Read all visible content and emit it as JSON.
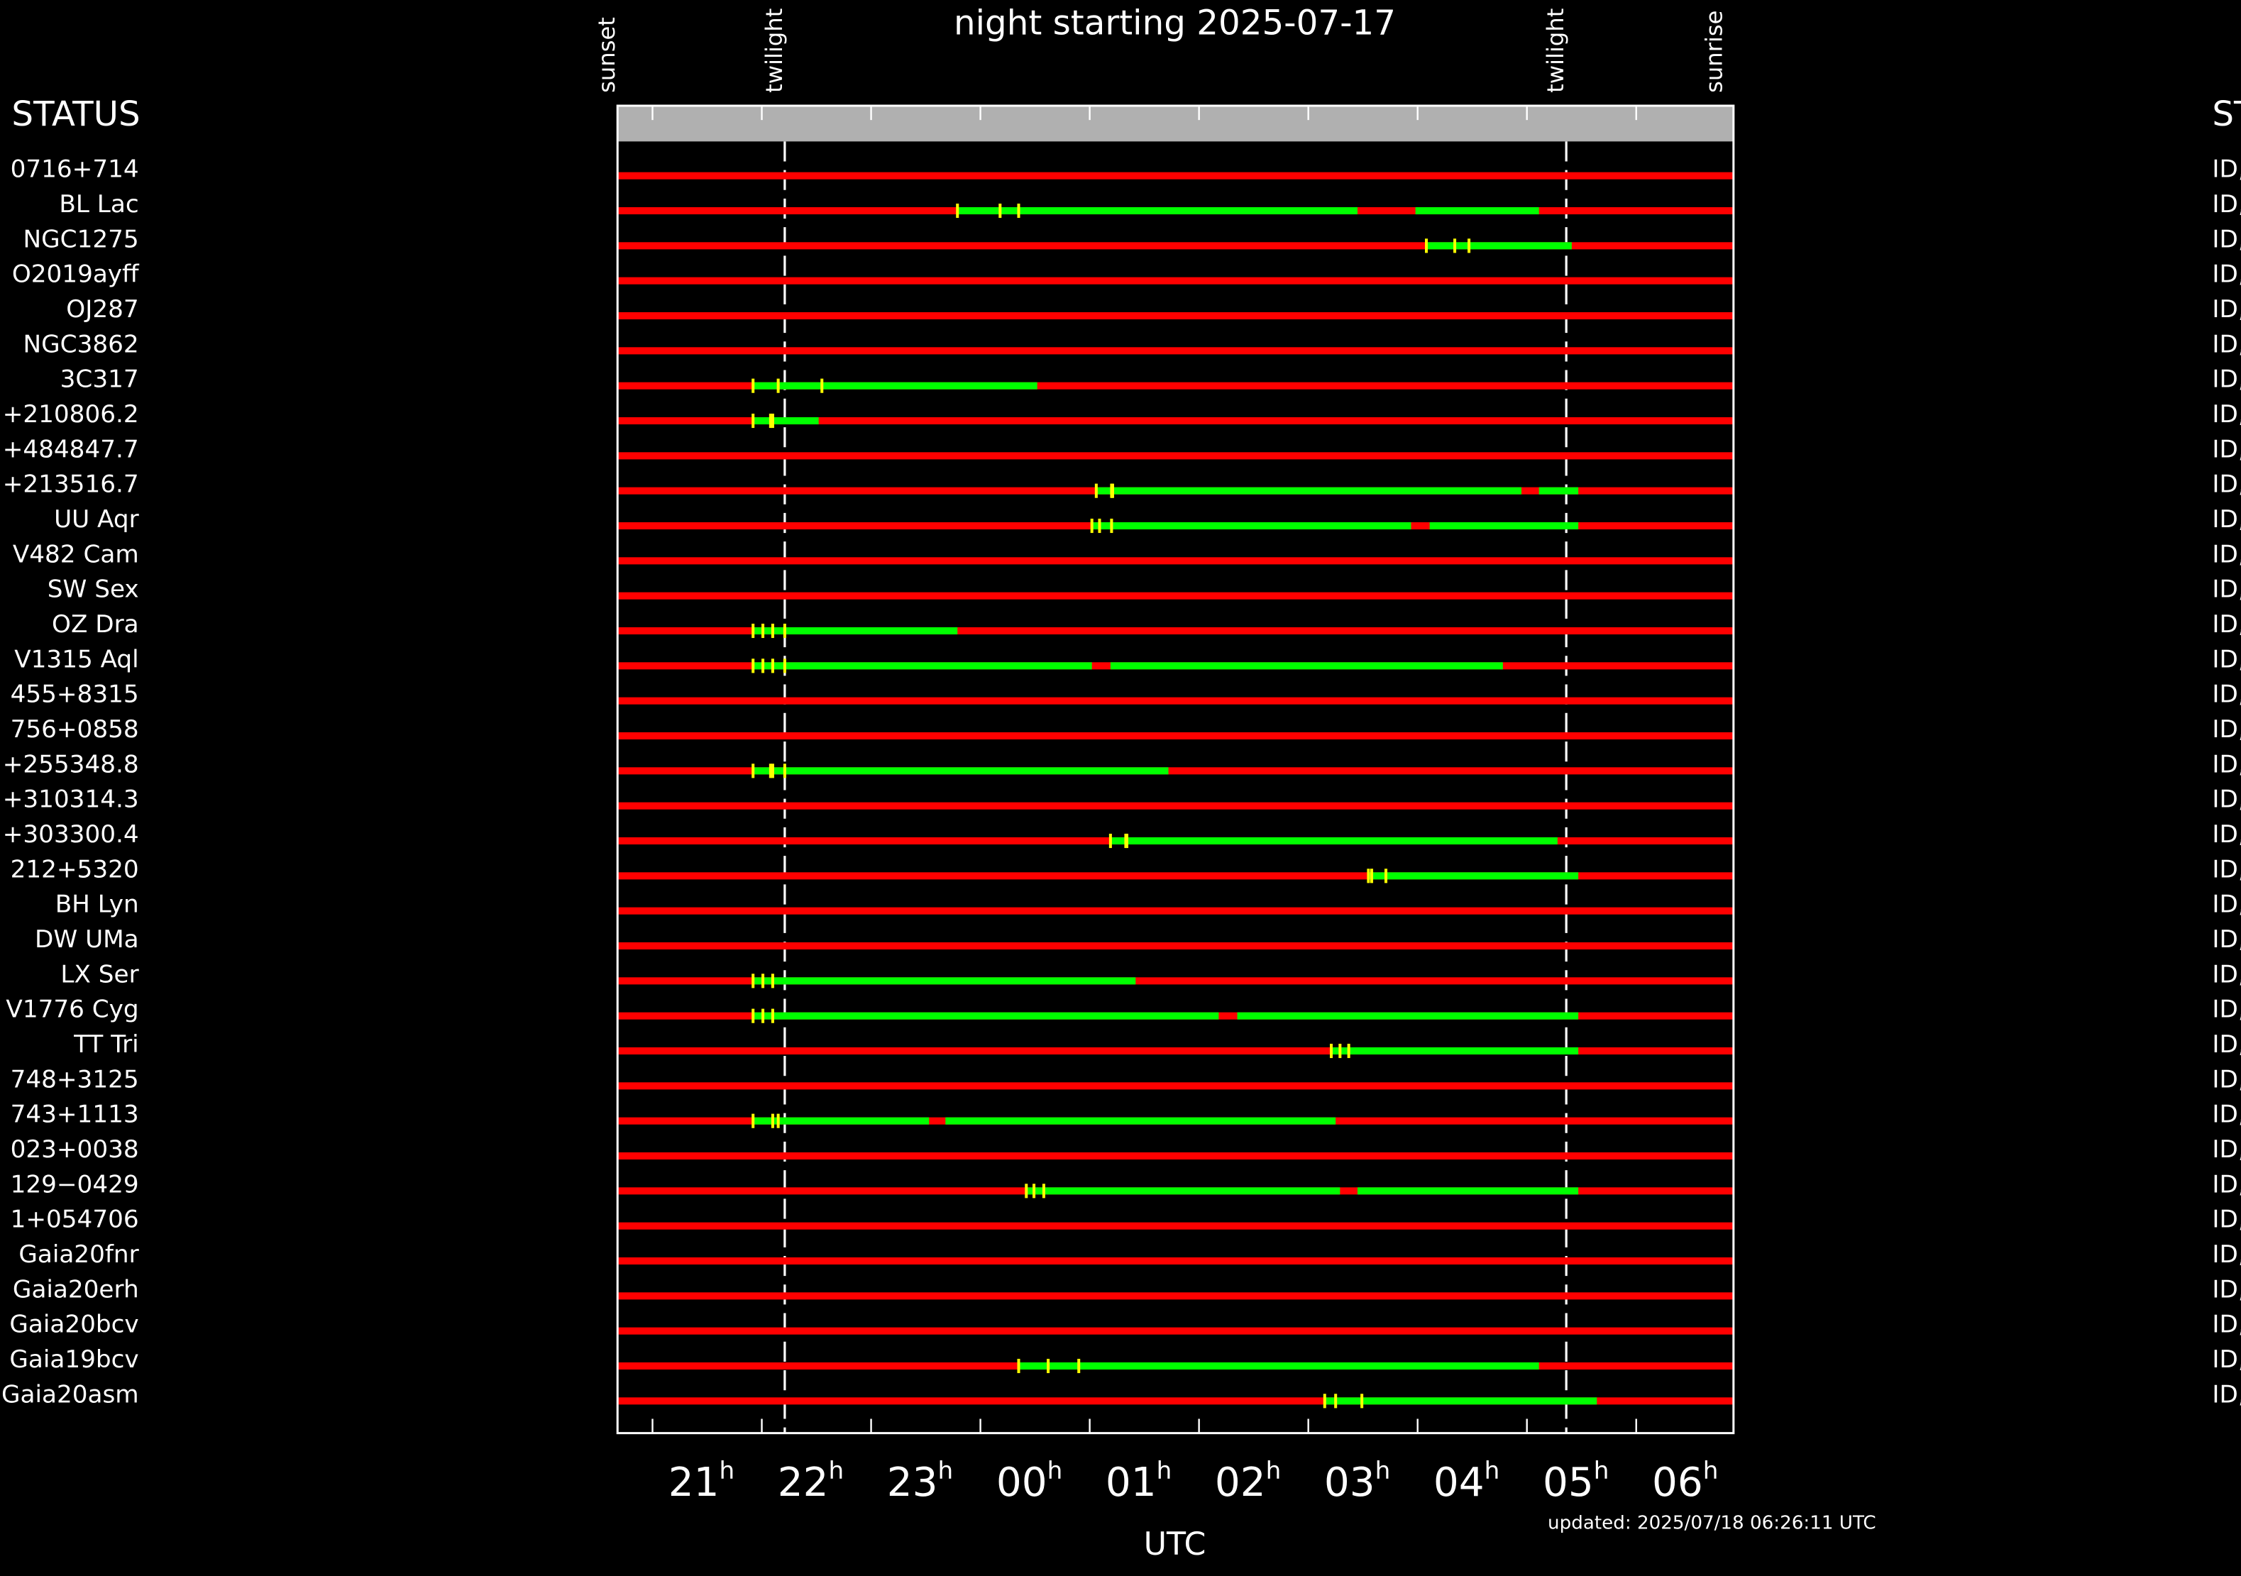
{
  "chart_data": {
    "type": "timeline",
    "title": "night starting 2025-07-17",
    "xlabel": "UTC",
    "left_header": "STATUS",
    "right_header": "ST",
    "updated": "updated: 2025/07/18 06:26:11 UTC",
    "bar_color": "#ff0000",
    "window_color": "#00ff00",
    "mark_color": "#ffff00",
    "xlim": [
      20.18,
      30.39
    ],
    "xticks": [
      {
        "value": 21,
        "label": "21h"
      },
      {
        "value": 22,
        "label": "22h"
      },
      {
        "value": 23,
        "label": "23h"
      },
      {
        "value": 24,
        "label": "00h"
      },
      {
        "value": 25,
        "label": "01h"
      },
      {
        "value": 26,
        "label": "02h"
      },
      {
        "value": 27,
        "label": "03h"
      },
      {
        "value": 28,
        "label": "04h"
      },
      {
        "value": 29,
        "label": "05h"
      },
      {
        "value": 30,
        "label": "06h"
      }
    ],
    "xminor": [
      20.5,
      21.5,
      22.5,
      23.5,
      24.5,
      25.5,
      26.5,
      27.5,
      28.5,
      29.5
    ],
    "events": [
      {
        "label": "sunset",
        "x": 20.18,
        "dashed": false
      },
      {
        "label": "twilight",
        "x": 21.71,
        "dashed": true
      },
      {
        "label": "twilight",
        "x": 28.86,
        "dashed": true
      },
      {
        "label": "sunrise",
        "x": 30.31,
        "dashed": false
      }
    ],
    "rows": [
      {
        "name": "0716+714",
        "status": "ID,",
        "windows": [],
        "marks": []
      },
      {
        "name": "BL Lac",
        "status": "ID,",
        "windows": [
          [
            23.29,
            26.95
          ],
          [
            27.48,
            28.61
          ]
        ],
        "marks": [
          23.29,
          23.68,
          23.85
        ]
      },
      {
        "name": "NGC1275",
        "status": "ID,",
        "windows": [
          [
            27.58,
            28.91
          ]
        ],
        "marks": [
          27.58,
          27.84,
          27.97
        ]
      },
      {
        "name": "O2019ayff",
        "status": "ID,",
        "windows": [],
        "marks": []
      },
      {
        "name": "OJ287",
        "status": "ID,",
        "windows": [],
        "marks": []
      },
      {
        "name": "NGC3862",
        "status": "ID,",
        "windows": [],
        "marks": []
      },
      {
        "name": "3C317",
        "status": "ID,",
        "windows": [
          [
            21.42,
            24.02
          ]
        ],
        "marks": [
          21.42,
          21.65,
          22.05
        ]
      },
      {
        "name": "+210806.2",
        "status": "ID,",
        "windows": [
          [
            21.42,
            22.02
          ]
        ],
        "marks": [
          21.42,
          21.58,
          21.6
        ]
      },
      {
        "name": "+484847.7",
        "status": "ID,",
        "windows": [],
        "marks": []
      },
      {
        "name": "+213516.7",
        "status": "ID,",
        "windows": [
          [
            24.56,
            28.45
          ],
          [
            28.61,
            28.97
          ]
        ],
        "marks": [
          24.56,
          24.7,
          24.71
        ]
      },
      {
        "name": "UU Aqr",
        "status": "ID,",
        "windows": [
          [
            24.52,
            27.44
          ],
          [
            27.61,
            28.97
          ]
        ],
        "marks": [
          24.52,
          24.59,
          24.7
        ]
      },
      {
        "name": "V482 Cam",
        "status": "ID,",
        "windows": [],
        "marks": []
      },
      {
        "name": "SW Sex",
        "status": "ID,",
        "windows": [],
        "marks": []
      },
      {
        "name": "OZ Dra",
        "status": "ID,",
        "windows": [
          [
            21.42,
            23.29
          ]
        ],
        "marks": [
          21.42,
          21.51,
          21.6,
          21.71
        ]
      },
      {
        "name": "V1315 Aql",
        "status": "ID,",
        "windows": [
          [
            21.42,
            24.52
          ],
          [
            24.69,
            28.28
          ]
        ],
        "marks": [
          21.42,
          21.51,
          21.6,
          21.71
        ]
      },
      {
        "name": "455+8315",
        "status": "ID,",
        "windows": [],
        "marks": []
      },
      {
        "name": "756+0858",
        "status": "ID,",
        "windows": [],
        "marks": []
      },
      {
        "name": "+255348.8",
        "status": "ID,",
        "windows": [
          [
            21.42,
            25.22
          ]
        ],
        "marks": [
          21.42,
          21.58,
          21.6,
          21.71
        ]
      },
      {
        "name": "+310314.3",
        "status": "ID,",
        "windows": [],
        "marks": []
      },
      {
        "name": "+303300.4",
        "status": "ID,",
        "windows": [
          [
            24.69,
            28.78
          ]
        ],
        "marks": [
          24.69,
          24.83,
          24.84
        ]
      },
      {
        "name": "212+5320",
        "status": "ID,",
        "windows": [
          [
            27.05,
            28.97
          ]
        ],
        "marks": [
          27.05,
          27.08,
          27.21
        ]
      },
      {
        "name": "BH Lyn",
        "status": "ID,",
        "windows": [],
        "marks": []
      },
      {
        "name": "DW UMa",
        "status": "ID,",
        "windows": [],
        "marks": []
      },
      {
        "name": "LX Ser",
        "status": "ID,",
        "windows": [
          [
            21.42,
            24.92
          ]
        ],
        "marks": [
          21.42,
          21.51,
          21.6
        ]
      },
      {
        "name": "V1776 Cyg",
        "status": "ID,",
        "windows": [
          [
            21.42,
            25.68
          ],
          [
            25.85,
            28.97
          ]
        ],
        "marks": [
          21.42,
          21.51,
          21.6
        ]
      },
      {
        "name": "TT Tri",
        "status": "ID,",
        "windows": [
          [
            26.71,
            28.97
          ]
        ],
        "marks": [
          26.71,
          26.79,
          26.87
        ]
      },
      {
        "name": "748+3125",
        "status": "ID,",
        "windows": [],
        "marks": []
      },
      {
        "name": "743+1113",
        "status": "ID,",
        "windows": [
          [
            21.42,
            23.03
          ],
          [
            23.18,
            26.75
          ]
        ],
        "marks": [
          21.42,
          21.6,
          21.65
        ]
      },
      {
        "name": "023+0038",
        "status": "ID,",
        "windows": [],
        "marks": []
      },
      {
        "name": "129−0429",
        "status": "ID,",
        "windows": [
          [
            23.92,
            26.79
          ],
          [
            26.95,
            28.97
          ]
        ],
        "marks": [
          23.92,
          23.99,
          24.08
        ]
      },
      {
        "name": "1+054706",
        "status": "ID,",
        "windows": [],
        "marks": []
      },
      {
        "name": "Gaia20fnr",
        "status": "ID,",
        "windows": [],
        "marks": []
      },
      {
        "name": "Gaia20erh",
        "status": "ID,",
        "windows": [],
        "marks": []
      },
      {
        "name": "Gaia20bcv",
        "status": "ID,",
        "windows": [],
        "marks": []
      },
      {
        "name": "Gaia19bcv",
        "status": "ID,",
        "windows": [
          [
            23.85,
            28.61
          ]
        ],
        "marks": [
          23.85,
          24.12,
          24.4
        ]
      },
      {
        "name": "Gaia20asm",
        "status": "ID,",
        "windows": [
          [
            26.65,
            29.14
          ]
        ],
        "marks": [
          26.65,
          26.75,
          26.99
        ]
      }
    ]
  }
}
